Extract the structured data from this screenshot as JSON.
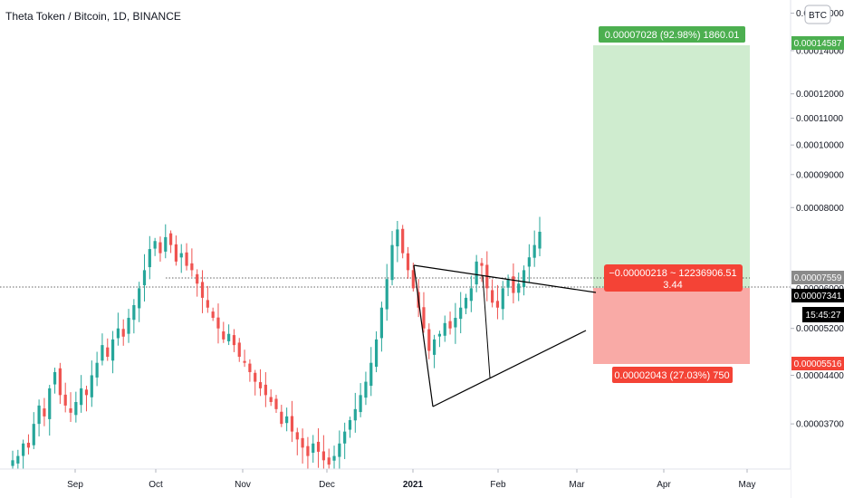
{
  "header": {
    "title": "Theta Token / Bitcoin, 1D, BINANCE"
  },
  "currency_button": "BTC",
  "colors": {
    "up": "#26a69a",
    "down": "#ef5350",
    "profit_fill": "#cfeccf",
    "loss_fill": "#f9aaa6",
    "profit_label": "#4caf50",
    "loss_label": "#f44336",
    "last_price_tag": "#000000",
    "drawing": "#000000"
  },
  "chart_data": {
    "type": "candlestick",
    "symbol": "THETABTC",
    "interval": "1D",
    "exchange": "BINANCE",
    "y_axis_labels": [
      "0.00016000",
      "0.00014000",
      "0.00012000",
      "0.00011000",
      "0.00010000",
      "0.00009000",
      "0.00008000",
      "0.00006000",
      "0.00005200",
      "0.00004400",
      "0.00003700"
    ],
    "x_axis_labels": [
      "Sep",
      "Oct",
      "Nov",
      "Dec",
      "2021",
      "Feb",
      "Mar",
      "Apr",
      "May"
    ],
    "x_axis_bold": [
      "2021"
    ],
    "ylim": [
      3.15e-05,
      0.000165
    ],
    "log_scale": true,
    "last_price": "0.00007341",
    "countdown": "15:45:27",
    "price_tags": {
      "target": "0.00014587",
      "entry": "0.00007559",
      "stop": "0.00005516"
    },
    "long_position": {
      "profit_label": "0.00007028 (92.98%) 1860.01",
      "center_label_line1": "−0.00000218 ~ 12236906.51",
      "center_label_line2": "3.44",
      "loss_label": "0.00002043 (27.03%) 750"
    },
    "candles_approx_close": [
      3.25e-05,
      3.3e-05,
      3.45e-05,
      3.4e-05,
      3.7e-05,
      3.95e-05,
      3.8e-05,
      4.2e-05,
      4.45e-05,
      4.1e-05,
      3.95e-05,
      3.85e-05,
      4e-05,
      4.2e-05,
      4.1e-05,
      4.4e-05,
      4.6e-05,
      4.9e-05,
      4.7e-05,
      5e-05,
      5.2e-05,
      5.05e-05,
      5.4e-05,
      5.65e-05,
      6e-05,
      6.4e-05,
      6.9e-05,
      7.1e-05,
      6.8e-05,
      7.2e-05,
      7e-05,
      6.6e-05,
      6.8e-05,
      6.5e-05,
      6.4e-05,
      6.1e-05,
      5.8e-05,
      5.6e-05,
      5.4e-05,
      5.2e-05,
      5e-05,
      5.1e-05,
      4.9e-05,
      4.7e-05,
      4.6e-05,
      4.45e-05,
      4.3e-05,
      4.2e-05,
      4.1e-05,
      4e-05,
      3.9e-05,
      3.7e-05,
      3.8e-05,
      3.6e-05,
      3.5e-05,
      3.4e-05,
      3.3e-05,
      3.45e-05,
      3.35e-05,
      3.25e-05,
      3.2e-05,
      3.3e-05,
      3.45e-05,
      3.6e-05,
      3.75e-05,
      3.9e-05,
      4.1e-05,
      4.3e-05,
      4.6e-05,
      5e-05,
      5.6e-05,
      6.2e-05,
      7e-05,
      7.4e-05,
      6.8e-05,
      6.4e-05,
      6e-05,
      5.6e-05,
      5.2e-05,
      4.8e-05,
      5e-05,
      5.1e-05,
      5.3e-05,
      5.2e-05,
      5.4e-05,
      5.6e-05,
      5.8e-05,
      6e-05,
      6.6e-05,
      6.5e-05,
      6e-05,
      5.7e-05,
      5.6e-05,
      6e-05,
      6.2e-05,
      5.9e-05,
      6.1e-05,
      6.4e-05,
      6.7e-05,
      7e-05,
      7.34e-05
    ]
  }
}
